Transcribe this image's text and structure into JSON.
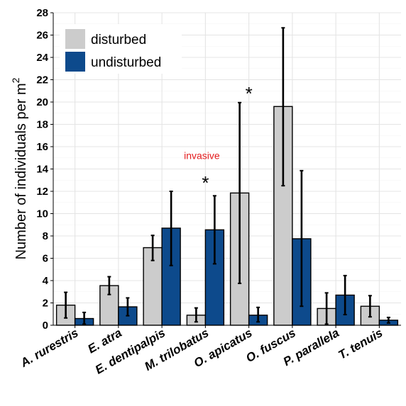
{
  "chart_data": {
    "type": "bar",
    "ylabel": "Number of individuals per m",
    "ylabel_sup": "2",
    "ylim": [
      0,
      28
    ],
    "yticks": [
      "0",
      "2",
      "4",
      "6",
      "8",
      "10",
      "12",
      "14",
      "16",
      "18",
      "20",
      "22",
      "24",
      "26",
      "28"
    ],
    "grid": true,
    "legend_position": "top-left",
    "categories": [
      "A. rurestris",
      "E. atra",
      "E. dentipalpis",
      "M. trilobatus",
      "O. apicatus",
      "O. fuscus",
      "P. parallela",
      "T. tenuis"
    ],
    "series": [
      {
        "name": "disturbed",
        "color": "#cccccc",
        "values": [
          1.8,
          3.55,
          6.95,
          0.9,
          11.85,
          19.6,
          1.5,
          1.7
        ],
        "err_low": [
          0.65,
          2.75,
          5.8,
          0.3,
          3.75,
          12.5,
          0.1,
          0.75
        ],
        "err_high": [
          2.95,
          4.35,
          8.05,
          1.55,
          19.95,
          26.65,
          2.9,
          2.65
        ]
      },
      {
        "name": "undisturbed",
        "color": "#0d4a8c",
        "values": [
          0.6,
          1.65,
          8.7,
          8.55,
          0.9,
          7.75,
          2.7,
          0.45
        ],
        "err_low": [
          0.1,
          0.85,
          5.35,
          5.5,
          0.3,
          1.7,
          0.95,
          0.2
        ],
        "err_high": [
          1.15,
          2.45,
          12.0,
          11.6,
          1.6,
          13.85,
          4.45,
          0.7
        ]
      }
    ],
    "annotations": [
      {
        "text": "*",
        "category": "M. trilobatus",
        "y": 13.2
      },
      {
        "text": "invasive",
        "category": "M. trilobatus",
        "y": 14.9,
        "color": "#e41a1c"
      },
      {
        "text": "*",
        "category": "O. apicatus",
        "y": 21.2
      }
    ]
  }
}
